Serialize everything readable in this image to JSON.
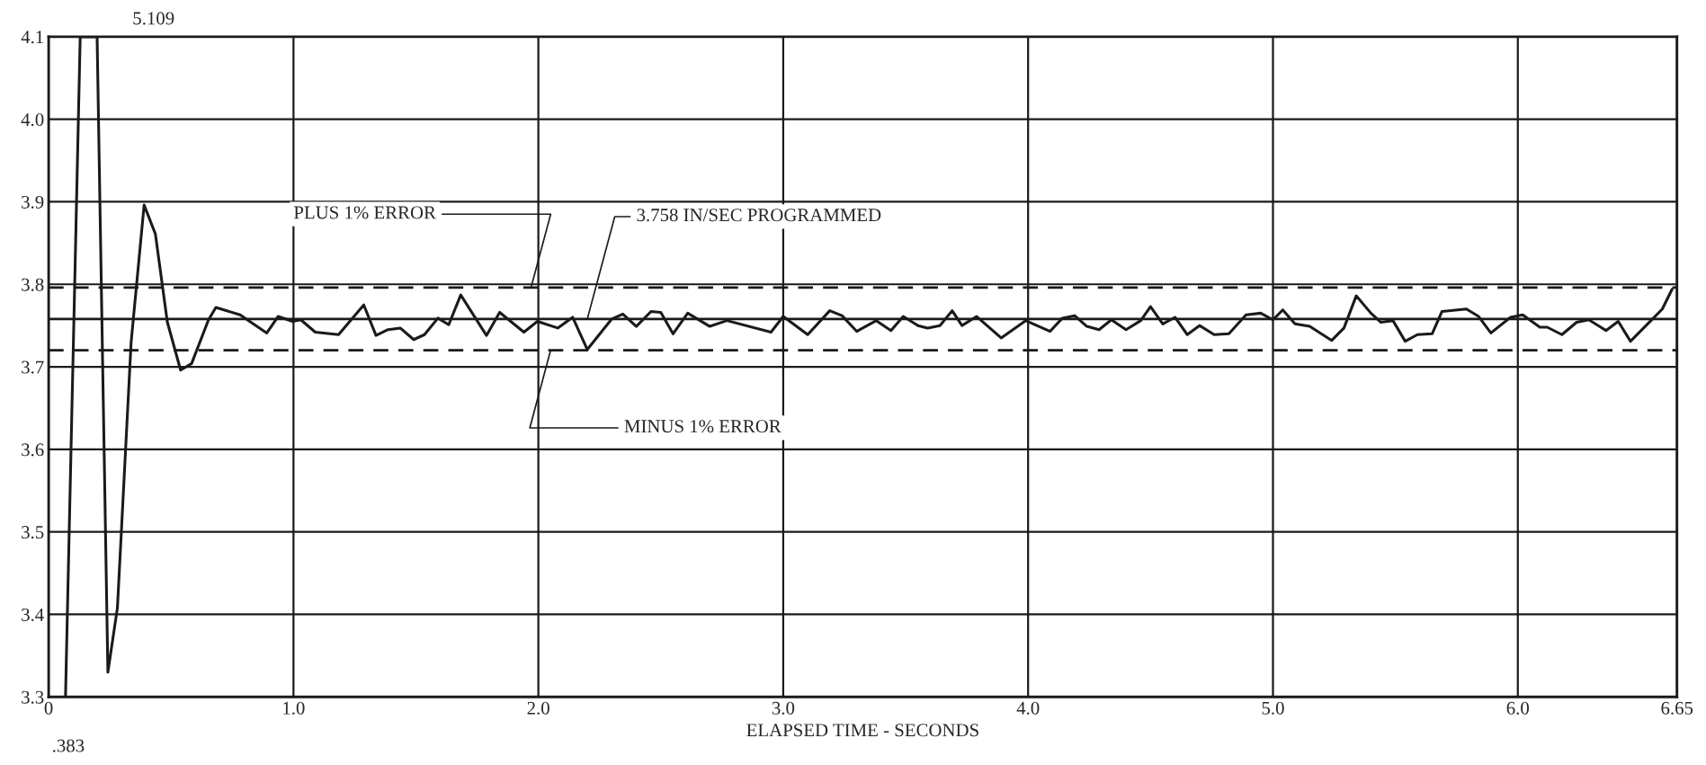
{
  "chart_data": {
    "type": "line",
    "xlabel": "ELAPSED TIME - SECONDS",
    "x": [
      0.069,
      0.129,
      0.165,
      0.198,
      0.242,
      0.281,
      0.337,
      0.39,
      0.436,
      0.485,
      0.539,
      0.584,
      0.653,
      0.683,
      0.782,
      0.891,
      0.937,
      0.996,
      1.03,
      1.089,
      1.184,
      1.287,
      1.337,
      1.386,
      1.436,
      1.491,
      1.535,
      1.59,
      1.634,
      1.683,
      1.788,
      1.842,
      1.941,
      1.996,
      2.079,
      2.14,
      2.2,
      2.3,
      2.345,
      2.4,
      2.46,
      2.5,
      2.55,
      2.61,
      2.7,
      2.77,
      2.95,
      3.0,
      3.1,
      3.19,
      3.24,
      3.3,
      3.38,
      3.44,
      3.49,
      3.55,
      3.59,
      3.64,
      3.69,
      3.73,
      3.79,
      3.89,
      3.99,
      4.09,
      4.14,
      4.19,
      4.24,
      4.29,
      4.34,
      4.4,
      4.46,
      4.5,
      4.55,
      4.6,
      4.65,
      4.7,
      4.76,
      4.82,
      4.89,
      4.95,
      5.0,
      5.04,
      5.09,
      5.15,
      5.24,
      5.29,
      5.34,
      5.4,
      5.44,
      5.49,
      5.54,
      5.59,
      5.65,
      5.69,
      5.79,
      5.84,
      5.89,
      5.97,
      6.02,
      6.09,
      6.12,
      6.18,
      6.24,
      6.29,
      6.36,
      6.41,
      6.46,
      6.55,
      6.59,
      6.63
    ],
    "series": [
      {
        "color": "#1a1a1a",
        "values": [
          3.3,
          4.1,
          null,
          4.1,
          3.33,
          3.408,
          3.73,
          3.896,
          3.861,
          3.754,
          3.696,
          3.704,
          3.757,
          3.772,
          3.763,
          3.741,
          3.761,
          3.755,
          3.757,
          3.742,
          3.739,
          3.775,
          3.738,
          3.745,
          3.747,
          3.733,
          3.739,
          3.759,
          3.751,
          3.787,
          3.738,
          3.766,
          3.742,
          3.755,
          3.747,
          3.76,
          3.721,
          3.758,
          3.764,
          3.749,
          3.767,
          3.766,
          3.74,
          3.765,
          3.749,
          3.756,
          3.742,
          3.761,
          3.739,
          3.768,
          3.762,
          3.743,
          3.756,
          3.744,
          3.761,
          3.75,
          3.747,
          3.75,
          3.768,
          3.75,
          3.761,
          3.735,
          3.756,
          3.743,
          3.759,
          3.762,
          3.749,
          3.745,
          3.757,
          3.745,
          3.756,
          3.773,
          3.752,
          3.76,
          3.739,
          3.75,
          3.739,
          3.74,
          3.763,
          3.765,
          3.757,
          3.769,
          3.752,
          3.749,
          3.732,
          3.747,
          3.786,
          3.765,
          3.754,
          3.756,
          3.731,
          3.739,
          3.74,
          3.767,
          3.77,
          3.761,
          3.741,
          3.76,
          3.763,
          3.748,
          3.748,
          3.739,
          3.754,
          3.757,
          3.744,
          3.755,
          3.731,
          3.758,
          3.77,
          3.794
        ]
      }
    ],
    "xlim": [
      0,
      6.65
    ],
    "xticks": [
      0,
      {
        "value": 1,
        "label": "1.0"
      },
      {
        "value": 2,
        "label": "2.0"
      },
      {
        "value": 3,
        "label": "3.0"
      },
      {
        "value": 4,
        "label": "4.0"
      },
      {
        "value": 5,
        "label": "5.0"
      },
      {
        "value": 6,
        "label": "6.0"
      },
      6.65
    ],
    "ylim": [
      3.3,
      4.1
    ],
    "yticks": [
      3.3,
      3.4,
      3.5,
      3.6,
      3.7,
      3.8,
      3.9,
      {
        "value": 4,
        "label": "4.0"
      },
      4.1
    ],
    "grid": true,
    "line_style": "solid",
    "ref_lines": [
      {
        "axis": "y",
        "value": 3.796,
        "label": "PLUS 1% ERROR",
        "line_style": "dashed",
        "color": "#1a1a1a"
      },
      {
        "axis": "y",
        "value": 3.758,
        "label": "3.758 IN/SEC PROGRAMMED",
        "line_style": "solid",
        "color": "#1a1a1a"
      },
      {
        "axis": "y",
        "value": 3.72,
        "label": "MINUS 1% ERROR",
        "line_style": "dashed",
        "color": "#1a1a1a"
      }
    ],
    "annotations": [
      "5.109",
      ".383"
    ]
  }
}
